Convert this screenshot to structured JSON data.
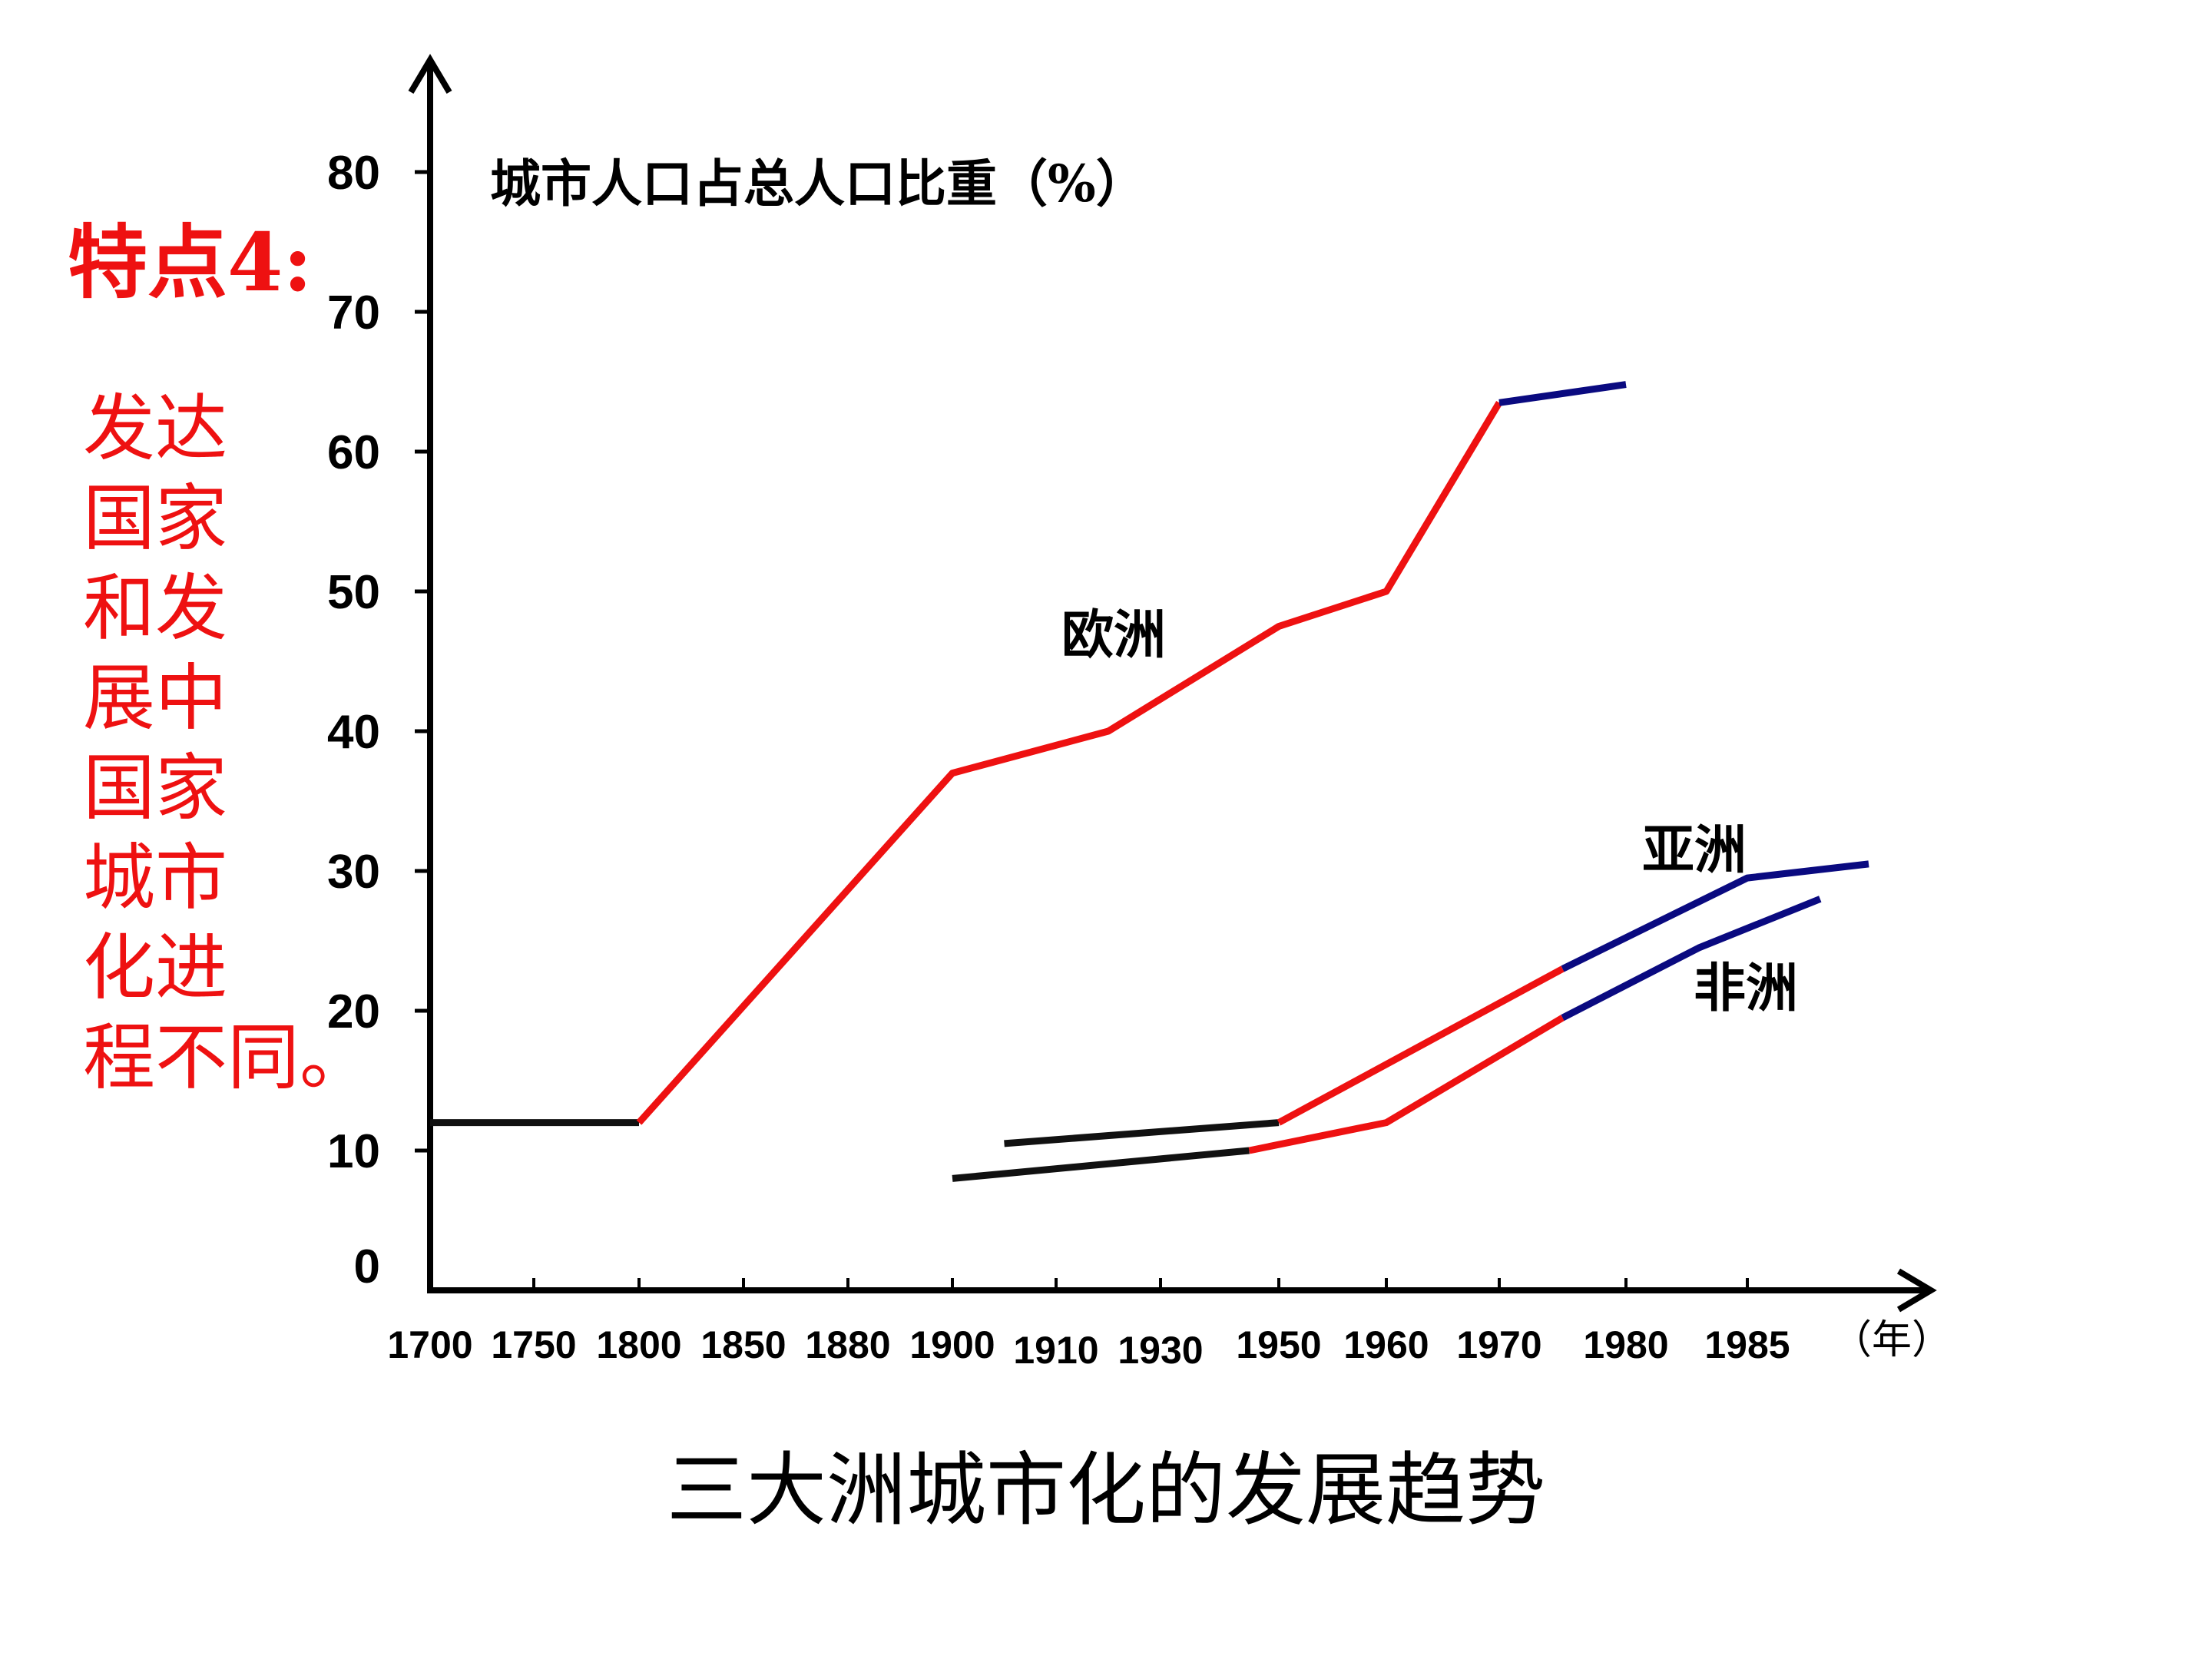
{
  "slide": {
    "heading": "特点4:",
    "body_lines": [
      "发达",
      "国家",
      "和发",
      "展中",
      "国家",
      "城市",
      "化进",
      "程不同。"
    ],
    "caption": "三大洲城市化的发展趋势"
  },
  "chart_data": {
    "type": "line",
    "title": "三大洲城市化的发展趋势",
    "ylabel": "城市人口占总人口比重（%）",
    "xlabel": "（年）",
    "ylim": [
      0,
      80
    ],
    "yticks": [
      "0",
      "10",
      "20",
      "30",
      "40",
      "50",
      "60",
      "70",
      "80"
    ],
    "xticks": [
      "1700",
      "1750",
      "1800",
      "1850",
      "1880",
      "1900",
      "1910",
      "1930",
      "1950",
      "1960",
      "1970",
      "1980",
      "1985"
    ],
    "grid": false,
    "legend": "none",
    "colors": {
      "black": "#111111",
      "red": "#ee1111",
      "blue": "#0a0a80"
    },
    "series": [
      {
        "name": "欧洲",
        "segments": [
          {
            "color": "black",
            "points": [
              [
                1700,
                12
              ],
              [
                1800,
                12
              ]
            ]
          },
          {
            "color": "red",
            "points": [
              [
                1800,
                12
              ],
              [
                1900,
                37
              ],
              [
                1920,
                40
              ],
              [
                1950,
                47.5
              ],
              [
                1960,
                50
              ],
              [
                1970,
                63.5
              ]
            ]
          },
          {
            "color": "blue",
            "points": [
              [
                1970,
                63.5
              ],
              [
                1980,
                64.8
              ]
            ]
          }
        ]
      },
      {
        "name": "亚洲",
        "segments": [
          {
            "color": "black",
            "points": [
              [
                1905,
                10.5
              ],
              [
                1950,
                12
              ]
            ]
          },
          {
            "color": "red",
            "points": [
              [
                1950,
                12
              ],
              [
                1975,
                23
              ]
            ]
          },
          {
            "color": "blue",
            "points": [
              [
                1975,
                23
              ],
              [
                1985,
                29.5
              ],
              [
                1990,
                30.5
              ]
            ]
          }
        ]
      },
      {
        "name": "非洲",
        "segments": [
          {
            "color": "black",
            "points": [
              [
                1900,
                8
              ],
              [
                1945,
                10
              ]
            ]
          },
          {
            "color": "red",
            "points": [
              [
                1945,
                10
              ],
              [
                1960,
                12
              ],
              [
                1975,
                19.5
              ]
            ]
          },
          {
            "color": "blue",
            "points": [
              [
                1975,
                19.5
              ],
              [
                1983,
                24.5
              ],
              [
                1988,
                28
              ]
            ]
          }
        ]
      }
    ]
  }
}
